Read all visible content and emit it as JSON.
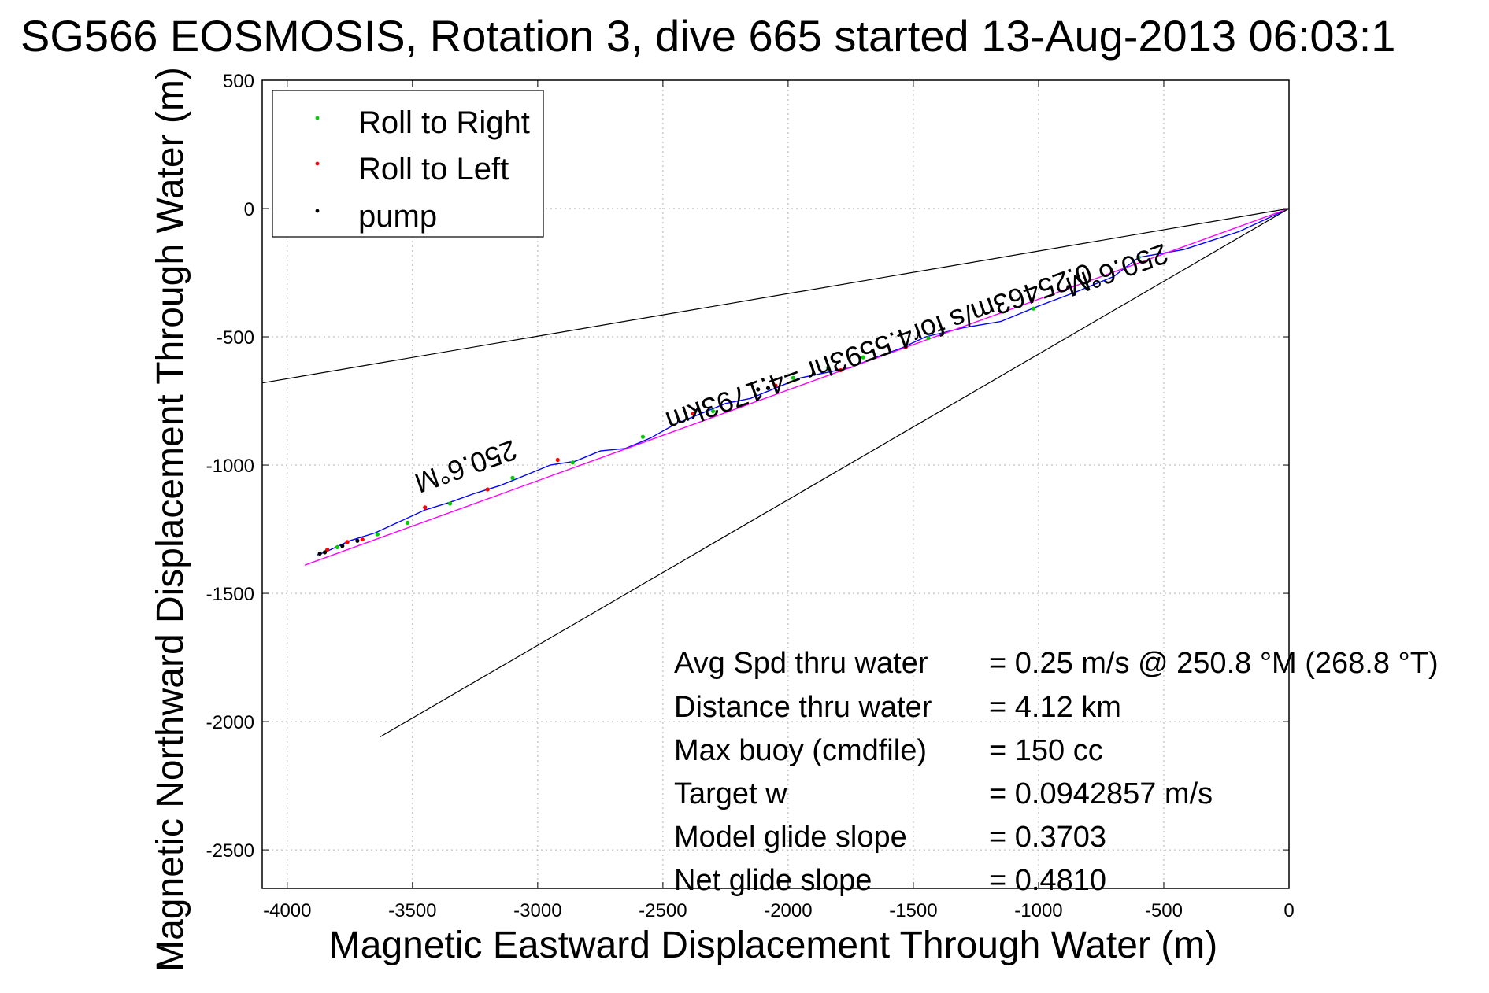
{
  "chart_data": {
    "type": "line",
    "title": "SG566 EOSMOSIS, Rotation 3, dive 665 started 13-Aug-2013 06:03:1",
    "xlabel": "Magnetic Eastward Displacement Through Water (m)",
    "ylabel": "Magnetic Northward Displacement Through Water (m)",
    "xlim": [
      -4100,
      0
    ],
    "ylim": [
      -2650,
      500
    ],
    "xticks": [
      -4000,
      -3500,
      -3000,
      -2500,
      -2000,
      -1500,
      -1000,
      -500,
      0
    ],
    "yticks": [
      500,
      0,
      -500,
      -1000,
      -1500,
      -2000,
      -2500
    ],
    "grid": true,
    "legend": {
      "placement": "top-left",
      "entries": [
        {
          "label": "Roll to Right",
          "color": "#00cc00"
        },
        {
          "label": "Roll to Left",
          "color": "#ff0000"
        },
        {
          "label": "pump",
          "color": "#000000"
        }
      ]
    },
    "colors": {
      "track": "#0000ff",
      "heading_line": "#ff00ff",
      "cone": "#000000"
    },
    "series": [
      {
        "role": "track",
        "x": [
          0,
          -200,
          -420,
          -600,
          -700,
          -850,
          -1000,
          -1150,
          -1300,
          -1450,
          -1550,
          -1650,
          -1750,
          -1850,
          -1950,
          -2050,
          -2150,
          -2250,
          -2350,
          -2450,
          -2550,
          -2650,
          -2750,
          -2850,
          -2950,
          -3050,
          -3150,
          -3250,
          -3350,
          -3450,
          -3550,
          -3650,
          -3750,
          -3850,
          -3880
        ],
        "y": [
          0,
          -90,
          -160,
          -190,
          -265,
          -325,
          -380,
          -440,
          -465,
          -500,
          -545,
          -580,
          -620,
          -640,
          -660,
          -700,
          -740,
          -760,
          -800,
          -840,
          -895,
          -935,
          -945,
          -985,
          -1000,
          -1040,
          -1080,
          -1110,
          -1145,
          -1175,
          -1220,
          -1265,
          -1295,
          -1340,
          -1350
        ]
      },
      {
        "role": "heading_line",
        "x": [
          0,
          -3930
        ],
        "y": [
          0,
          -1390
        ]
      },
      {
        "role": "cone",
        "x": [
          -4100,
          0,
          -3630
        ],
        "y": [
          -680,
          0,
          -2060
        ]
      }
    ],
    "markers": {
      "roll_right": [
        {
          "x": -600,
          "y": -190
        },
        {
          "x": -1020,
          "y": -390
        },
        {
          "x": -1440,
          "y": -505
        },
        {
          "x": -1700,
          "y": -580
        },
        {
          "x": -1840,
          "y": -620
        },
        {
          "x": -1980,
          "y": -660
        },
        {
          "x": -2300,
          "y": -790
        },
        {
          "x": -2580,
          "y": -890
        },
        {
          "x": -2860,
          "y": -990
        },
        {
          "x": -3100,
          "y": -1050
        },
        {
          "x": -3350,
          "y": -1150
        },
        {
          "x": -3520,
          "y": -1225
        },
        {
          "x": -3800,
          "y": -1320
        },
        {
          "x": -3640,
          "y": -1270
        }
      ],
      "roll_left": [
        {
          "x": -1530,
          "y": -540
        },
        {
          "x": -1790,
          "y": -630
        },
        {
          "x": -2050,
          "y": -690
        },
        {
          "x": -2380,
          "y": -800
        },
        {
          "x": -2920,
          "y": -980
        },
        {
          "x": -3200,
          "y": -1095
        },
        {
          "x": -3450,
          "y": -1165
        },
        {
          "x": -3700,
          "y": -1290
        },
        {
          "x": -3760,
          "y": -1300
        },
        {
          "x": -3840,
          "y": -1330
        }
      ],
      "pump": [
        {
          "x": -3870,
          "y": -1345
        },
        {
          "x": -3850,
          "y": -1340
        },
        {
          "x": -3780,
          "y": -1315
        },
        {
          "x": -3720,
          "y": -1295
        },
        {
          "x": -2120,
          "y": -705
        },
        {
          "x": -2080,
          "y": -700
        }
      ]
    },
    "annotations": [
      {
        "text": "250.6°M",
        "x": -3300,
        "y": -970,
        "rotate": 160.4
      },
      {
        "text": "250.6°M",
        "x": -700,
        "y": -205,
        "rotate": 160.4
      },
      {
        "text": "0.25463m/s for4.5593hr =4.1793km",
        "x": -1650,
        "y": -505,
        "rotate": 160.4
      }
    ],
    "summary": [
      {
        "label": "Avg Spd thru water",
        "value": "=  0.25 m/s @ 250.8 °M (268.8 °T)"
      },
      {
        "label": "Distance thru water",
        "value": "=  4.12 km"
      },
      {
        "label": "Max buoy (cmdfile)",
        "value": "= 150 cc"
      },
      {
        "label": "Target w",
        "value": "= 0.0942857 m/s"
      },
      {
        "label": "Model glide slope",
        "value": "= 0.3703"
      },
      {
        "label": "Net glide slope",
        "value": "= 0.4810"
      }
    ]
  }
}
